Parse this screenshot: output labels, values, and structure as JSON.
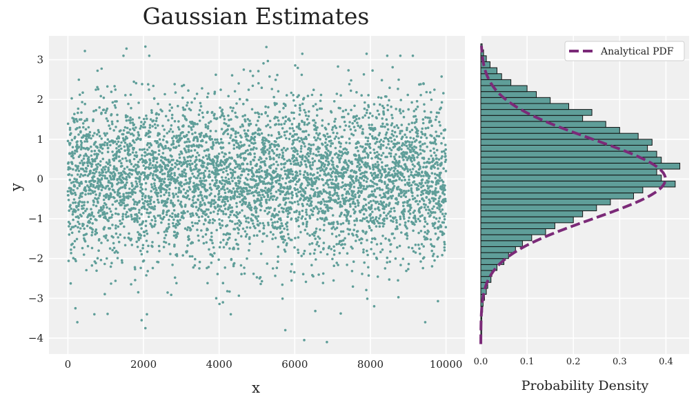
{
  "chart_data": [
    {
      "type": "scatter",
      "title": "Gaussian Estimates",
      "xlabel": "x",
      "ylabel": "y",
      "xlim": [
        -500,
        10500
      ],
      "ylim": [
        -4.4,
        3.6
      ],
      "xticks": [
        0,
        2000,
        4000,
        6000,
        8000,
        10000
      ],
      "xtick_labels": [
        "0",
        "2000",
        "4000",
        "6000",
        "8000",
        "10000"
      ],
      "yticks": [
        3,
        2,
        1,
        0,
        -1,
        -2,
        -3,
        -4
      ],
      "ytick_labels": [
        "3",
        "2",
        "1",
        "0",
        "−1",
        "−2",
        "−3",
        "−4"
      ],
      "grid": true,
      "series": [
        {
          "n_points": 10000,
          "distribution": "standard normal",
          "color": "#5f9e99",
          "sample_outliers": [
            {
              "x": 450,
              "y": 3.22
            },
            {
              "x": 1550,
              "y": 3.28
            },
            {
              "x": 2050,
              "y": 3.33
            },
            {
              "x": 5250,
              "y": 3.32
            },
            {
              "x": 6200,
              "y": 3.15
            },
            {
              "x": 7900,
              "y": 3.15
            },
            {
              "x": 200,
              "y": -3.25
            },
            {
              "x": 250,
              "y": -3.6
            },
            {
              "x": 1950,
              "y": -3.55
            },
            {
              "x": 2050,
              "y": -3.75
            },
            {
              "x": 5750,
              "y": -3.8
            },
            {
              "x": 6250,
              "y": -4.05
            },
            {
              "x": 6850,
              "y": -4.1
            },
            {
              "x": 9450,
              "y": -3.6
            },
            {
              "x": 8100,
              "y": -3.2
            },
            {
              "x": 4100,
              "y": -3.1
            }
          ]
        }
      ]
    },
    {
      "type": "bar",
      "orientation": "horizontal",
      "xlabel": "Probability Density",
      "ylabel": "",
      "xlim": [
        0,
        0.45
      ],
      "ylim": [
        -4.4,
        3.6
      ],
      "xticks": [
        0.0,
        0.1,
        0.2,
        0.3,
        0.4
      ],
      "xtick_labels": [
        "0.0",
        "0.1",
        "0.2",
        "0.3",
        "0.4"
      ],
      "grid": true,
      "legend": {
        "position": "top-right",
        "entries": [
          "Analytical PDF"
        ]
      },
      "bar_color": "#5f9e99",
      "pdf_color": "#7b2a78",
      "histogram": {
        "bin_edges": [
          -4.1,
          -3.95,
          -3.8,
          -3.65,
          -3.5,
          -3.35,
          -3.2,
          -3.05,
          -2.9,
          -2.75,
          -2.6,
          -2.45,
          -2.3,
          -2.15,
          -2.0,
          -1.85,
          -1.7,
          -1.55,
          -1.4,
          -1.25,
          -1.1,
          -0.95,
          -0.8,
          -0.65,
          -0.5,
          -0.35,
          -0.2,
          -0.05,
          0.1,
          0.25,
          0.4,
          0.55,
          0.7,
          0.85,
          1.0,
          1.15,
          1.3,
          1.45,
          1.6,
          1.75,
          1.9,
          2.05,
          2.2,
          2.35,
          2.5,
          2.65,
          2.8,
          2.95,
          3.1,
          3.25,
          3.4
        ],
        "densities": [
          0.001,
          0.002,
          0.001,
          0.002,
          0.002,
          0.004,
          0.005,
          0.008,
          0.012,
          0.015,
          0.022,
          0.024,
          0.035,
          0.05,
          0.06,
          0.075,
          0.09,
          0.11,
          0.14,
          0.16,
          0.2,
          0.22,
          0.25,
          0.28,
          0.33,
          0.35,
          0.42,
          0.39,
          0.38,
          0.43,
          0.39,
          0.38,
          0.36,
          0.37,
          0.34,
          0.3,
          0.27,
          0.22,
          0.24,
          0.19,
          0.15,
          0.12,
          0.1,
          0.065,
          0.045,
          0.035,
          0.02,
          0.012,
          0.006,
          0.003
        ]
      },
      "pdf": {
        "mean": 0,
        "std": 1
      }
    }
  ]
}
